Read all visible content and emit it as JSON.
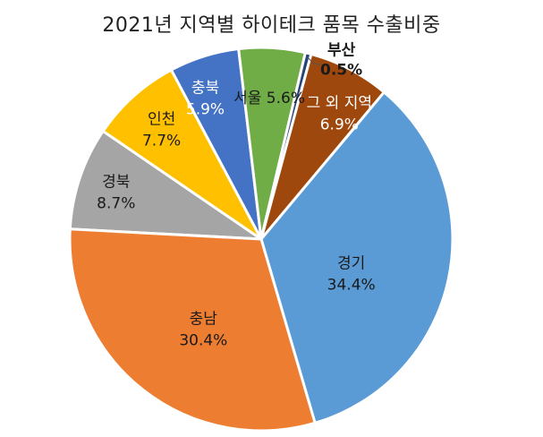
{
  "chart_data": {
    "type": "pie",
    "title": "2021년 지역별 하이테크 품목 수출비중",
    "slices": [
      {
        "label": "경북",
        "value": 8.7,
        "value_label": "8.7%",
        "color": "#A5A5A5",
        "label_color": "#1a1a1a",
        "bold": false
      },
      {
        "label": "인천",
        "value": 7.7,
        "value_label": "7.7%",
        "color": "#FFC000",
        "label_color": "#1a1a1a",
        "bold": false
      },
      {
        "label": "충북",
        "value": 5.9,
        "value_label": "5.9%",
        "color": "#4472C4",
        "label_color": "#ffffff",
        "bold": false
      },
      {
        "label": "서울",
        "value": 5.6,
        "value_label": "5.6%",
        "color": "#70AD47",
        "label_color": "#1a1a1a",
        "bold": false
      },
      {
        "label": "부산",
        "value": 0.5,
        "value_label": "0.5%",
        "color": "#264478",
        "label_color": "#1a1a1a",
        "bold": true
      },
      {
        "label": "그 외 지역",
        "value": 6.9,
        "value_label": "6.9%",
        "color": "#9E480E",
        "label_color": "#ffffff",
        "bold": false
      },
      {
        "label": "경기",
        "value": 34.4,
        "value_label": "34.4%",
        "color": "#5B9BD5",
        "label_color": "#1a1a1a",
        "bold": false
      },
      {
        "label": "충남",
        "value": 30.4,
        "value_label": "30.4%",
        "color": "#ED7D31",
        "label_color": "#1a1a1a",
        "bold": false
      }
    ],
    "legend": "none",
    "data_labels": "category and percent on slices"
  }
}
